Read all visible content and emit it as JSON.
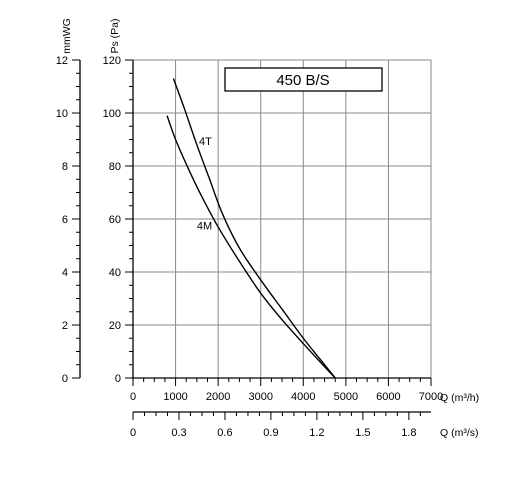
{
  "chart_data": {
    "type": "line",
    "title": "450 B/S",
    "ylabel": "Ps (Pa)",
    "ylabel_secondary": "mmWG",
    "xlabel": "Q (m³/h)",
    "xlabel_secondary": "Q (m³/s)",
    "xlim": [
      0,
      7000
    ],
    "ylim": [
      0,
      120
    ],
    "ylim_secondary": [
      0,
      12
    ],
    "grid": true,
    "x_ticks": [
      "0",
      "1000",
      "2000",
      "3000",
      "4000",
      "5000",
      "6000",
      "7000"
    ],
    "x_ticks_secondary": [
      {
        "value": 0,
        "label": "0"
      },
      {
        "value": 0.3,
        "label": "0.3"
      },
      {
        "value": 0.6,
        "label": "0.6"
      },
      {
        "value": 0.9,
        "label": "0.9"
      },
      {
        "value": 1.2,
        "label": "1.2"
      },
      {
        "value": 1.5,
        "label": "1.5"
      },
      {
        "value": 1.8,
        "label": "1.8"
      }
    ],
    "y_ticks": [
      "0",
      "20",
      "40",
      "60",
      "80",
      "100",
      "120"
    ],
    "y_ticks_secondary": [
      "0",
      "2",
      "4",
      "6",
      "8",
      "10",
      "12"
    ],
    "series": [
      {
        "name": "4T",
        "x": [
          950,
          1200,
          1500,
          1800,
          2100,
          2500,
          3000,
          3500,
          4000,
          4400,
          4750
        ],
        "y": [
          113,
          102,
          88,
          75,
          62,
          49,
          37,
          26,
          15,
          7,
          0
        ]
      },
      {
        "name": "4M",
        "x": [
          800,
          1000,
          1300,
          1600,
          2000,
          2500,
          3000,
          3500,
          4000,
          4400,
          4750
        ],
        "y": [
          99,
          90,
          79,
          69,
          57,
          44,
          32,
          22,
          13,
          6,
          0
        ]
      }
    ]
  }
}
